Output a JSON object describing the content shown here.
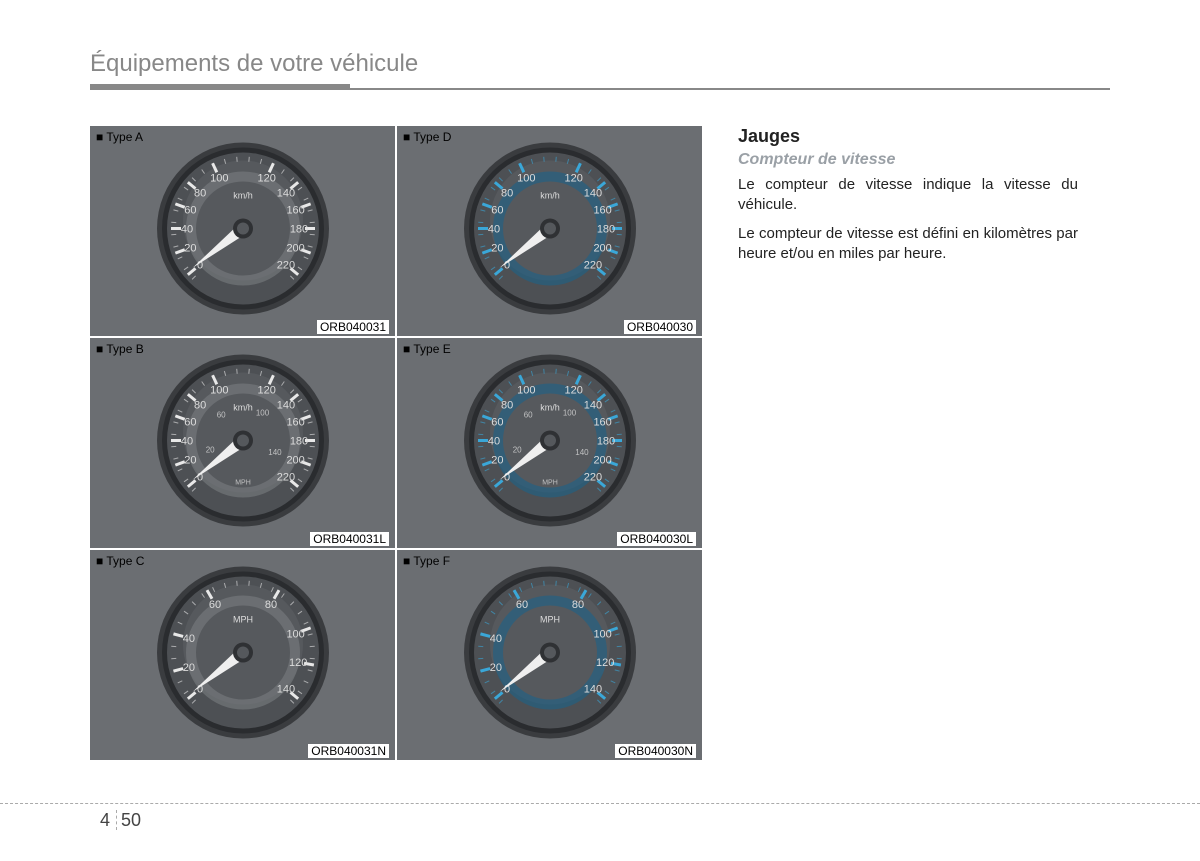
{
  "header": {
    "title": "Équipements de votre véhicule"
  },
  "section": {
    "title": "Jauges",
    "subtitle": "Compteur de vitesse",
    "p1": "Le compteur de vitesse indique la vitesse du véhicule.",
    "p2": "Le compteur de vitesse est défini en kilomètres par heure et/ou en miles par heure."
  },
  "gauges": {
    "colors": {
      "cell_bg": "#6b6e72",
      "bezel_outer": "#3a3c3f",
      "bezel_inner": "#2a2c2f",
      "face": "#4d5054",
      "face_light": "#686b6f",
      "tick": "#e8e8e8",
      "blue_tick": "#3aa7d8",
      "blue_dark": "#1d6288",
      "needle": "#efefef",
      "label": "#dcdcdc"
    },
    "cells": [
      {
        "type_label": "■ Type A",
        "code": "ORB040031",
        "variant": "A"
      },
      {
        "type_label": "■ Type D",
        "code": "ORB040030",
        "variant": "D"
      },
      {
        "type_label": "■ Type B",
        "code": "ORB040031L",
        "variant": "B"
      },
      {
        "type_label": "■ Type E",
        "code": "ORB040030L",
        "variant": "E"
      },
      {
        "type_label": "■ Type C",
        "code": "ORB040031N",
        "variant": "C"
      },
      {
        "type_label": "■ Type F",
        "code": "ORB040030N",
        "variant": "F"
      }
    ],
    "kmh": {
      "unit": "km/h",
      "ticks": [
        {
          "v": "0",
          "a": 220
        },
        {
          "v": "20",
          "a": 200
        },
        {
          "v": "40",
          "a": 180
        },
        {
          "v": "60",
          "a": 160
        },
        {
          "v": "80",
          "a": 140
        },
        {
          "v": "100",
          "a": 115
        },
        {
          "v": "120",
          "a": 65
        },
        {
          "v": "140",
          "a": 40
        },
        {
          "v": "160",
          "a": 20
        },
        {
          "v": "180",
          "a": 0
        },
        {
          "v": "200",
          "a": -20
        },
        {
          "v": "220",
          "a": -40
        }
      ]
    },
    "mph": {
      "unit": "MPH",
      "ticks": [
        {
          "v": "0",
          "a": 220
        },
        {
          "v": "20",
          "a": 195
        },
        {
          "v": "40",
          "a": 165
        },
        {
          "v": "60",
          "a": 120
        },
        {
          "v": "80",
          "a": 60
        },
        {
          "v": "100",
          "a": 20
        },
        {
          "v": "120",
          "a": -10
        },
        {
          "v": "140",
          "a": -40
        }
      ]
    },
    "mph_inner": {
      "ticks": [
        {
          "v": "20",
          "a": 195
        },
        {
          "v": "60",
          "a": 130
        },
        {
          "v": "100",
          "a": 55
        },
        {
          "v": "140",
          "a": -20
        }
      ],
      "unit": "MPH"
    },
    "needle_angle": 218
  },
  "footer": {
    "chapter": "4",
    "page": "50"
  }
}
